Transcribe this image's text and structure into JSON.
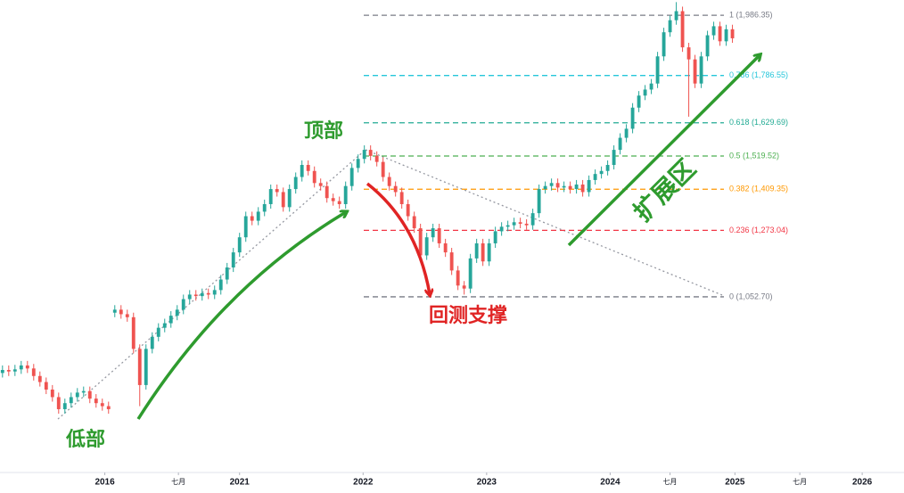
{
  "chart_data": {
    "type": "candlestick",
    "up_color": "#26a69a",
    "down_color": "#ef5350",
    "xlim": [
      -0.4,
      144.5
    ],
    "ylim": [
      470,
      2037
    ],
    "xticks": [
      {
        "value": 16.4,
        "label": "2016"
      },
      {
        "value": 28.2,
        "label": "七月"
      },
      {
        "value": 38,
        "label": "2021"
      },
      {
        "value": 57.8,
        "label": "2022"
      },
      {
        "value": 77.6,
        "label": "2023"
      },
      {
        "value": 97.4,
        "label": "2024"
      },
      {
        "value": 107,
        "label": "七月"
      },
      {
        "value": 117.4,
        "label": "2025"
      },
      {
        "value": 127.8,
        "label": "七月"
      },
      {
        "value": 137.8,
        "label": "2026"
      }
    ],
    "candles": {
      "open": [
        800,
        810,
        805,
        812,
        825,
        815,
        790,
        770,
        745,
        720,
        680,
        700,
        720,
        735,
        740,
        715,
        700,
        690,
        1000,
        1010,
        995,
        985,
        880,
        760,
        880,
        920,
        950,
        965,
        990,
        1010,
        1045,
        1060,
        1055,
        1065,
        1060,
        1075,
        1110,
        1150,
        1200,
        1250,
        1320,
        1305,
        1335,
        1360,
        1410,
        1400,
        1350,
        1410,
        1450,
        1490,
        1470,
        1430,
        1420,
        1380,
        1370,
        1360,
        1420,
        1480,
        1510,
        1540,
        1520,
        1500,
        1450,
        1420,
        1400,
        1360,
        1320,
        1280,
        1190,
        1250,
        1280,
        1230,
        1200,
        1140,
        1090,
        1080,
        1180,
        1230,
        1170,
        1230,
        1270,
        1285,
        1290,
        1300,
        1295,
        1290,
        1330,
        1410,
        1420,
        1430,
        1415,
        1420,
        1410,
        1425,
        1400,
        1440,
        1460,
        1470,
        1490,
        1540,
        1580,
        1610,
        1680,
        1720,
        1740,
        1760,
        1850,
        1930,
        1970,
        2000,
        1880,
        1840,
        1760,
        1850,
        1920,
        1950,
        1900,
        1940
      ],
      "high": [
        825,
        825,
        827,
        840,
        840,
        830,
        805,
        785,
        760,
        735,
        715,
        735,
        750,
        755,
        755,
        730,
        715,
        705,
        1025,
        1025,
        1010,
        1000,
        895,
        895,
        935,
        965,
        980,
        1005,
        1025,
        1060,
        1075,
        1075,
        1080,
        1080,
        1090,
        1125,
        1165,
        1215,
        1265,
        1335,
        1335,
        1350,
        1375,
        1425,
        1425,
        1415,
        1425,
        1465,
        1505,
        1505,
        1485,
        1445,
        1435,
        1395,
        1385,
        1435,
        1495,
        1525,
        1555,
        1555,
        1535,
        1515,
        1465,
        1435,
        1415,
        1375,
        1335,
        1295,
        1265,
        1295,
        1295,
        1245,
        1215,
        1155,
        1105,
        1195,
        1245,
        1245,
        1245,
        1285,
        1300,
        1305,
        1315,
        1315,
        1310,
        1345,
        1425,
        1435,
        1445,
        1445,
        1435,
        1435,
        1440,
        1440,
        1455,
        1475,
        1485,
        1505,
        1555,
        1595,
        1625,
        1695,
        1735,
        1755,
        1775,
        1865,
        1945,
        1985,
        2030,
        2015,
        1895,
        1855,
        1865,
        1935,
        1965,
        1965,
        1955,
        1955
      ],
      "low": [
        785,
        790,
        790,
        797,
        800,
        775,
        755,
        730,
        705,
        665,
        665,
        685,
        705,
        720,
        700,
        685,
        675,
        665,
        985,
        980,
        970,
        865,
        690,
        745,
        865,
        905,
        935,
        950,
        975,
        995,
        1030,
        1040,
        1040,
        1045,
        1045,
        1060,
        1095,
        1135,
        1185,
        1235,
        1290,
        1290,
        1320,
        1345,
        1385,
        1335,
        1335,
        1395,
        1435,
        1455,
        1415,
        1405,
        1365,
        1355,
        1345,
        1345,
        1405,
        1465,
        1495,
        1505,
        1485,
        1435,
        1405,
        1385,
        1345,
        1305,
        1265,
        1175,
        1175,
        1235,
        1215,
        1185,
        1125,
        1075,
        1060,
        1065,
        1165,
        1155,
        1155,
        1215,
        1255,
        1270,
        1275,
        1280,
        1275,
        1275,
        1315,
        1395,
        1405,
        1400,
        1400,
        1395,
        1395,
        1385,
        1385,
        1425,
        1445,
        1455,
        1475,
        1525,
        1565,
        1595,
        1665,
        1705,
        1725,
        1745,
        1835,
        1915,
        1955,
        1865,
        1650,
        1745,
        1745,
        1835,
        1905,
        1885,
        1885,
        1895
      ],
      "close": [
        810,
        805,
        812,
        825,
        815,
        790,
        770,
        745,
        720,
        680,
        700,
        720,
        735,
        740,
        715,
        700,
        690,
        680,
        1010,
        995,
        985,
        880,
        760,
        880,
        920,
        950,
        965,
        990,
        1010,
        1045,
        1060,
        1055,
        1065,
        1060,
        1075,
        1110,
        1150,
        1200,
        1250,
        1320,
        1305,
        1335,
        1360,
        1410,
        1400,
        1350,
        1410,
        1450,
        1490,
        1470,
        1430,
        1420,
        1380,
        1370,
        1360,
        1420,
        1480,
        1510,
        1540,
        1520,
        1500,
        1450,
        1420,
        1400,
        1360,
        1320,
        1280,
        1190,
        1250,
        1280,
        1230,
        1200,
        1140,
        1090,
        1080,
        1180,
        1230,
        1170,
        1230,
        1270,
        1285,
        1290,
        1300,
        1295,
        1290,
        1330,
        1410,
        1420,
        1430,
        1415,
        1420,
        1410,
        1425,
        1400,
        1440,
        1460,
        1470,
        1490,
        1540,
        1580,
        1610,
        1680,
        1720,
        1740,
        1760,
        1850,
        1930,
        1970,
        2000,
        1880,
        1840,
        1760,
        1850,
        1920,
        1950,
        1900,
        1940,
        1910
      ]
    },
    "fib_levels": [
      {
        "label": "1 (1,986.35)",
        "value": 1986.35,
        "color": "#787b86"
      },
      {
        "label": "0.786 (1,786.55)",
        "value": 1786.55,
        "color": "#26c6da"
      },
      {
        "label": "0.618 (1,629.69)",
        "value": 1629.69,
        "color": "#22ab94"
      },
      {
        "label": "0.5 (1,519.52)",
        "value": 1519.52,
        "color": "#4caf50"
      },
      {
        "label": "0.382 (1,409.35)",
        "value": 1409.35,
        "color": "#ff9800"
      },
      {
        "label": "0.236 (1,273.04)",
        "value": 1273.04,
        "color": "#f23645"
      },
      {
        "label": "0 (1,052.70)",
        "value": 1052.7,
        "color": "#787b86"
      }
    ],
    "annotations": {
      "top": "顶部",
      "bottom": "低部",
      "retest": "回测支撑",
      "extension": "扩展区"
    }
  }
}
